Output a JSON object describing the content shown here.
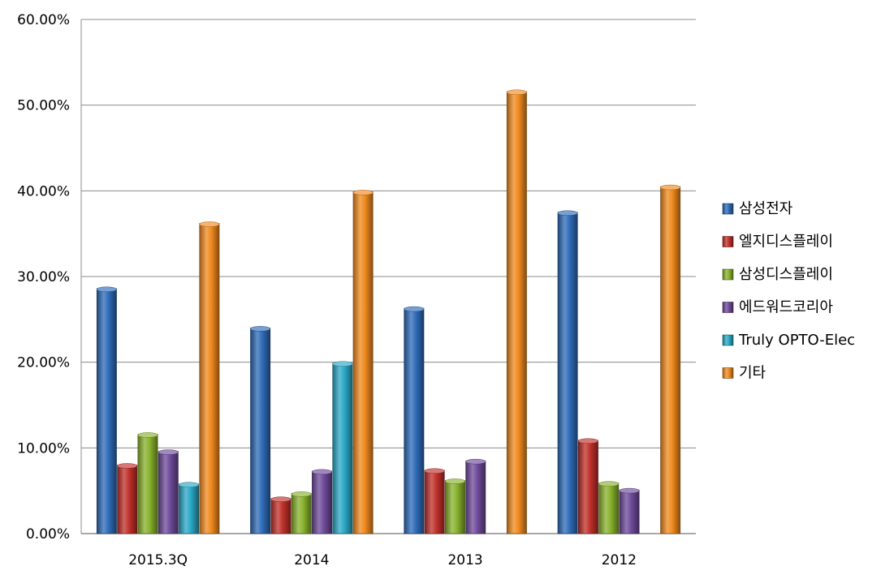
{
  "chart_data": {
    "type": "bar",
    "title": "",
    "xlabel": "",
    "ylabel": "",
    "categories": [
      "2015.3Q",
      "2014",
      "2013",
      "2012"
    ],
    "ylim": [
      0,
      60
    ],
    "yticks": [
      "0.00%",
      "10.00%",
      "20.00%",
      "30.00%",
      "40.00%",
      "50.00%",
      "60.00%"
    ],
    "grid": true,
    "legend_position": "right",
    "series": [
      {
        "name": "삼성전자",
        "color": "#2e6bb8",
        "values": [
          28.6,
          24.0,
          26.3,
          37.5
        ]
      },
      {
        "name": "엘지디스플레이",
        "color": "#c0302a",
        "values": [
          8.0,
          4.1,
          7.4,
          10.9
        ]
      },
      {
        "name": "삼성디스플레이",
        "color": "#88b22c",
        "values": [
          11.6,
          4.7,
          6.2,
          5.9
        ]
      },
      {
        "name": "에드워드코리아",
        "color": "#6e4a9a",
        "values": [
          9.6,
          7.3,
          8.5,
          5.1
        ]
      },
      {
        "name": "Truly OPTO-Elec",
        "color": "#2aa8c6",
        "values": [
          5.8,
          19.9,
          null,
          null
        ]
      },
      {
        "name": "기타",
        "color": "#f08a1e",
        "values": [
          36.2,
          39.9,
          51.6,
          40.5
        ]
      }
    ]
  }
}
